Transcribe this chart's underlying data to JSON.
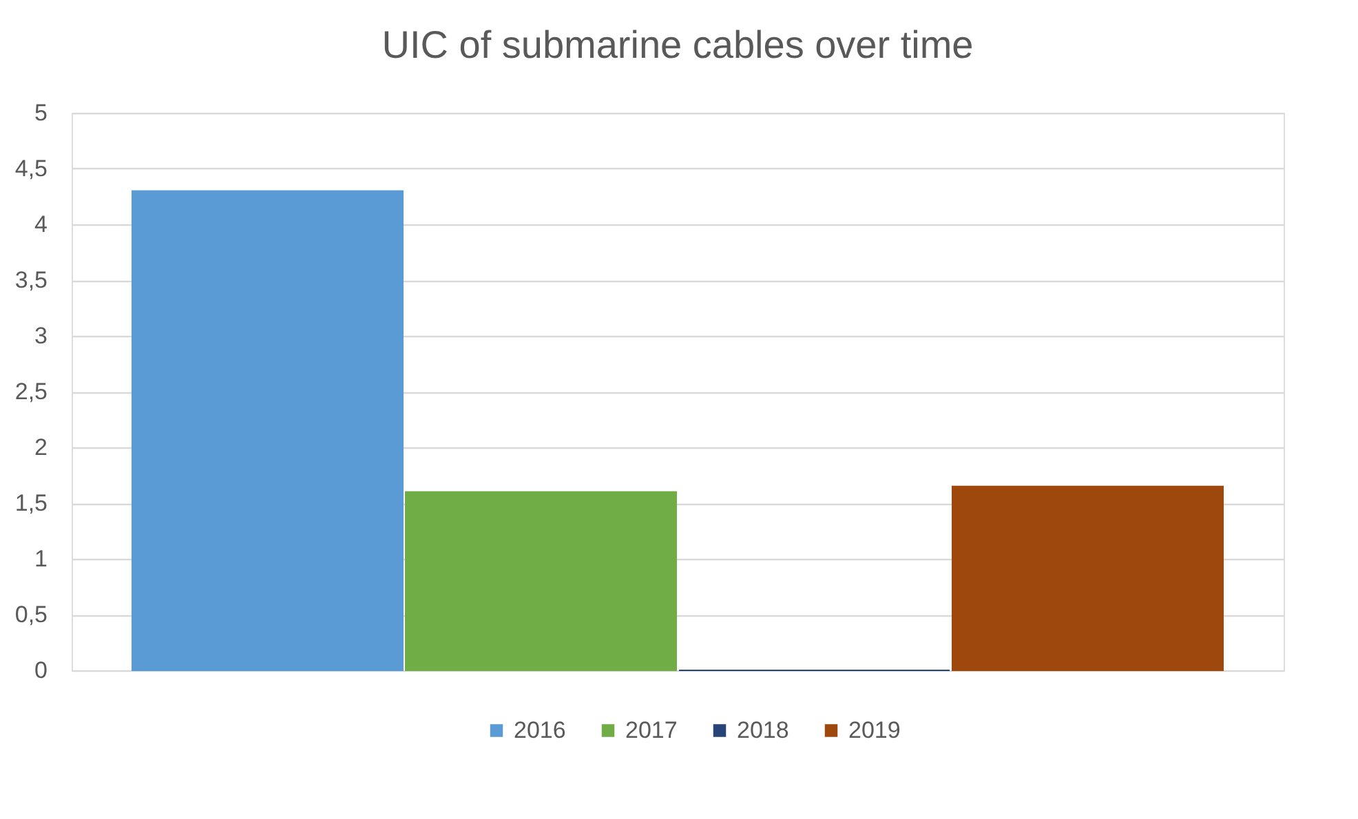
{
  "chart_data": {
    "type": "bar",
    "title": "UIC of submarine cables over time",
    "categories": [
      null
    ],
    "series": [
      {
        "name": "2016",
        "color": "#5b9bd5",
        "values": [
          4.3
        ]
      },
      {
        "name": "2017",
        "color": "#70ad47",
        "values": [
          1.6
        ]
      },
      {
        "name": "2018",
        "color": "#264478",
        "values": [
          0
        ]
      },
      {
        "name": "2019",
        "color": "#9e480e",
        "values": [
          1.65
        ]
      }
    ],
    "ylim": [
      0,
      5
    ],
    "yticks": [
      0,
      {
        "value": 0.5,
        "label": "0,5"
      },
      1,
      {
        "value": 1.5,
        "label": "1,5"
      },
      2,
      {
        "value": 2.5,
        "label": "2,5"
      },
      3,
      {
        "value": 3.5,
        "label": "3,5"
      },
      4,
      {
        "value": 4.5,
        "label": "4,5"
      },
      5
    ],
    "grid": "y",
    "legend": "bottom",
    "tick_labels": "y"
  }
}
